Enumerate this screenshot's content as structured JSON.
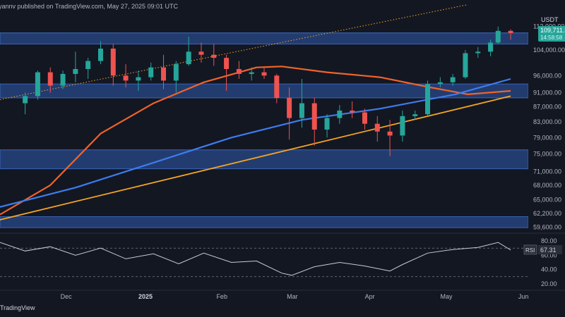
{
  "header": {
    "text": "yannv published on TradingView.com, May 27, 2025 09:01 UTC"
  },
  "footer": {
    "brand": "TradingView"
  },
  "price_axis": {
    "currency": "USDT",
    "labels": [
      "112,000.00",
      "104,000.00",
      "96,000.00",
      "91,000.00",
      "87,000.00",
      "83,000.00",
      "79,000.00",
      "75,000.00",
      "71,000.00",
      "68,000.00",
      "65,000.00",
      "62,200.00",
      "59,600.00"
    ],
    "current_price": "109,711.8",
    "countdown": "14:58:58"
  },
  "rsi": {
    "label": "RSI",
    "value": "67.31",
    "levels": [
      "80.00",
      "60.00",
      "40.00",
      "20.00"
    ]
  },
  "x_axis": {
    "labels": [
      "Dec",
      "2025",
      "Feb",
      "Mar",
      "Apr",
      "May",
      "Jun"
    ]
  },
  "colors": {
    "background": "#131722",
    "zone": "#2a4a8a",
    "zone_border": "#3a63b8",
    "ma_orange": "#f0632a",
    "ma_blue": "#3d7cf0",
    "trend_orange": "#f5a623",
    "bull": "#26a69a",
    "bear": "#ef5350",
    "rsi_line": "#c9cbd3",
    "price_tag": "#26a69a"
  },
  "chart_data": {
    "type": "candlestick",
    "y_scale": "log",
    "ylim": [
      59000,
      117000
    ],
    "xlim": [
      "2024-11-05",
      "2025-06-03"
    ],
    "support_resistance_zones": [
      {
        "low": 106000,
        "high": 109800
      },
      {
        "low": 89500,
        "high": 93500
      },
      {
        "low": 71600,
        "high": 76000
      },
      {
        "low": 59500,
        "high": 61600
      }
    ],
    "moving_averages": [
      {
        "color": "orange",
        "points": [
          [
            "2024-11-05",
            62000
          ],
          [
            "2024-11-25",
            68000
          ],
          [
            "2024-12-15",
            80000
          ],
          [
            "2025-01-05",
            88000
          ],
          [
            "2025-01-25",
            94000
          ],
          [
            "2025-02-15",
            98500
          ],
          [
            "2025-02-25",
            98800
          ],
          [
            "2025-03-15",
            97000
          ],
          [
            "2025-04-05",
            95500
          ],
          [
            "2025-04-25",
            92500
          ],
          [
            "2025-05-10",
            90500
          ],
          [
            "2025-05-27",
            91500
          ]
        ]
      },
      {
        "color": "blue",
        "points": [
          [
            "2024-11-05",
            63500
          ],
          [
            "2024-12-05",
            67500
          ],
          [
            "2025-01-05",
            73000
          ],
          [
            "2025-02-05",
            79000
          ],
          [
            "2025-03-05",
            83500
          ],
          [
            "2025-04-05",
            86500
          ],
          [
            "2025-05-05",
            90500
          ],
          [
            "2025-05-27",
            95000
          ]
        ]
      }
    ],
    "trendlines": [
      {
        "style": "solid",
        "color": "orange",
        "points": [
          [
            "2024-11-05",
            61000
          ],
          [
            "2025-05-27",
            90000
          ]
        ]
      },
      {
        "style": "dotted",
        "color": "orange",
        "points": [
          [
            "2024-11-05",
            89000
          ],
          [
            "2025-05-10",
            120000
          ]
        ]
      }
    ],
    "ohlc": [
      [
        "2024-11-15",
        88000,
        91000,
        85000,
        90000
      ],
      [
        "2024-11-20",
        90000,
        97500,
        89000,
        97000
      ],
      [
        "2024-11-25",
        97000,
        98500,
        91000,
        93000
      ],
      [
        "2024-11-30",
        93000,
        97500,
        92000,
        96500
      ],
      [
        "2024-12-05",
        96500,
        103500,
        94000,
        98000
      ],
      [
        "2024-12-10",
        98000,
        101500,
        95000,
        100500
      ],
      [
        "2024-12-15",
        100500,
        107000,
        99500,
        104500
      ],
      [
        "2024-12-20",
        104500,
        106000,
        93000,
        96000
      ],
      [
        "2024-12-25",
        96000,
        99500,
        92500,
        94500
      ],
      [
        "2024-12-30",
        94500,
        97500,
        91500,
        95500
      ],
      [
        "2025-01-04",
        95500,
        100000,
        94500,
        98500
      ],
      [
        "2025-01-09",
        98500,
        102500,
        92000,
        94500
      ],
      [
        "2025-01-14",
        94500,
        100500,
        91000,
        99500
      ],
      [
        "2025-01-19",
        99500,
        108500,
        99000,
        103500
      ],
      [
        "2025-01-24",
        103500,
        106500,
        100000,
        102500
      ],
      [
        "2025-01-29",
        102500,
        106000,
        99000,
        101500
      ],
      [
        "2025-02-03",
        101500,
        102500,
        91500,
        98000
      ],
      [
        "2025-02-08",
        98000,
        100500,
        95000,
        96500
      ],
      [
        "2025-02-13",
        96500,
        98500,
        94500,
        97000
      ],
      [
        "2025-02-18",
        97000,
        98500,
        95000,
        96000
      ],
      [
        "2025-02-23",
        96000,
        96500,
        88000,
        89500
      ],
      [
        "2025-02-28",
        89500,
        92500,
        78500,
        84000
      ],
      [
        "2025-03-05",
        84000,
        95000,
        81500,
        88000
      ],
      [
        "2025-03-10",
        88000,
        89500,
        77000,
        81000
      ],
      [
        "2025-03-15",
        81000,
        85000,
        79000,
        84000
      ],
      [
        "2025-03-20",
        84000,
        87500,
        82500,
        86000
      ],
      [
        "2025-03-25",
        86000,
        88500,
        84000,
        85500
      ],
      [
        "2025-03-30",
        85500,
        86500,
        81000,
        82500
      ],
      [
        "2025-04-04",
        82500,
        84500,
        78000,
        80500
      ],
      [
        "2025-04-09",
        80500,
        83500,
        74500,
        79500
      ],
      [
        "2025-04-14",
        79500,
        86000,
        78000,
        84500
      ],
      [
        "2025-04-19",
        84500,
        86000,
        83500,
        85000
      ],
      [
        "2025-04-24",
        85000,
        94500,
        84500,
        93500
      ],
      [
        "2025-04-29",
        93500,
        95500,
        92500,
        94000
      ],
      [
        "2025-05-04",
        94000,
        96500,
        93000,
        95500
      ],
      [
        "2025-05-09",
        95500,
        104000,
        95000,
        103000
      ],
      [
        "2025-05-14",
        103000,
        105000,
        101500,
        103500
      ],
      [
        "2025-05-19",
        103500,
        107500,
        102000,
        106500
      ],
      [
        "2025-05-22",
        106500,
        112000,
        106000,
        110500
      ],
      [
        "2025-05-27",
        110500,
        111000,
        107500,
        109711.8
      ]
    ],
    "rsi_series": [
      [
        "2024-11-05",
        78
      ],
      [
        "2024-11-15",
        66
      ],
      [
        "2024-11-25",
        72
      ],
      [
        "2024-12-05",
        60
      ],
      [
        "2024-12-15",
        70
      ],
      [
        "2024-12-25",
        55
      ],
      [
        "2025-01-05",
        62
      ],
      [
        "2025-01-15",
        48
      ],
      [
        "2025-01-25",
        63
      ],
      [
        "2025-02-05",
        50
      ],
      [
        "2025-02-15",
        52
      ],
      [
        "2025-02-25",
        35
      ],
      [
        "2025-03-01",
        32
      ],
      [
        "2025-03-10",
        44
      ],
      [
        "2025-03-20",
        50
      ],
      [
        "2025-03-30",
        45
      ],
      [
        "2025-04-09",
        38
      ],
      [
        "2025-04-14",
        47
      ],
      [
        "2025-04-24",
        63
      ],
      [
        "2025-05-04",
        68
      ],
      [
        "2025-05-14",
        71
      ],
      [
        "2025-05-22",
        78
      ],
      [
        "2025-05-27",
        67.31
      ]
    ]
  }
}
